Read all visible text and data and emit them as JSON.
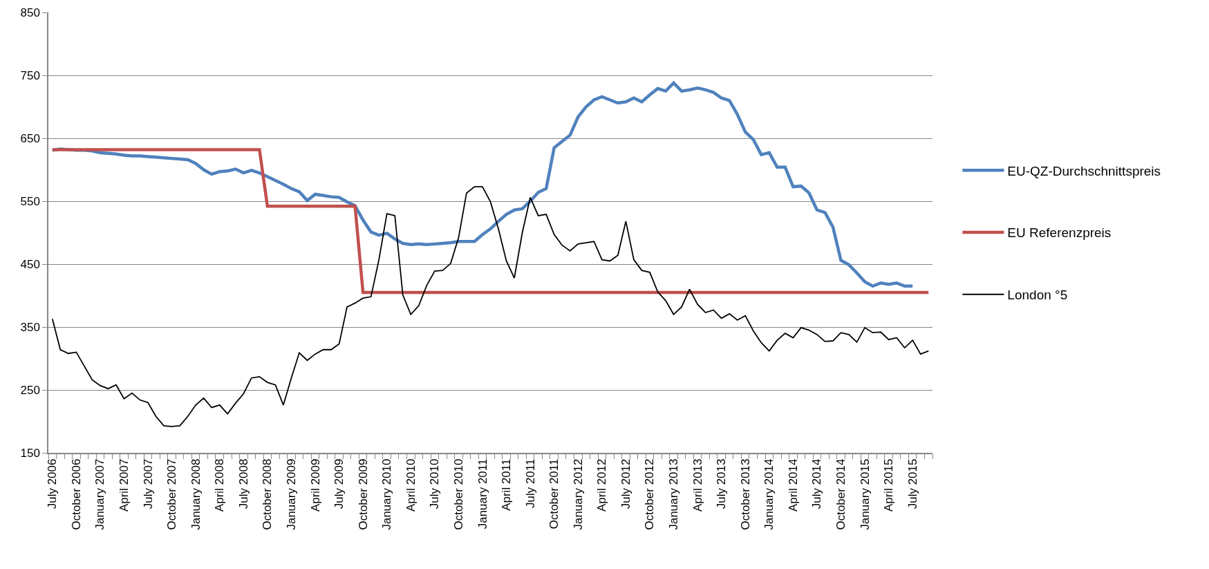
{
  "chart_data": {
    "type": "line",
    "categories": [
      "July 2006",
      null,
      null,
      "October 2006",
      null,
      null,
      "January 2007",
      null,
      null,
      "April 2007",
      null,
      null,
      "July 2007",
      null,
      null,
      "October 2007",
      null,
      null,
      "January 2008",
      null,
      null,
      "April 2008",
      null,
      null,
      "July 2008",
      null,
      null,
      "October 2008",
      null,
      null,
      "January 2009",
      null,
      null,
      "April 2009",
      null,
      null,
      "July 2009",
      null,
      null,
      "October 2009",
      null,
      null,
      "January 2010",
      null,
      null,
      "April 2010",
      null,
      null,
      "July 2010",
      null,
      null,
      "October 2010",
      null,
      null,
      "January 2011",
      null,
      null,
      "April 2011",
      null,
      null,
      "July 2011",
      null,
      null,
      "October 2011",
      null,
      null,
      "January 2012",
      null,
      null,
      "April 2012",
      null,
      null,
      "July 2012",
      null,
      null,
      "October 2012",
      null,
      null,
      "January 2013",
      null,
      null,
      "April 2013",
      null,
      null,
      "July 2013",
      null,
      null,
      "October 2013",
      null,
      null,
      "January 2014",
      null,
      null,
      "April 2014",
      null,
      null,
      "July 2014",
      null,
      null,
      "October 2014",
      null,
      null,
      "January 2015",
      null,
      null,
      "April 2015",
      null,
      null,
      "July 2015",
      null,
      null
    ],
    "series": [
      {
        "name": "EU-QZ-Durchschnittspreis",
        "color": "#4f81bd",
        "values": [
          631,
          633,
          632,
          631,
          631,
          630,
          627,
          626,
          625,
          623,
          622,
          622,
          621,
          620,
          619,
          618,
          617,
          616,
          610,
          600,
          593,
          597,
          598,
          601,
          595,
          599,
          595,
          589,
          583,
          577,
          570,
          565,
          551,
          561,
          559,
          557,
          556,
          549,
          543,
          520,
          501,
          496,
          499,
          490,
          483,
          481,
          482,
          481,
          482,
          483,
          484,
          486,
          486,
          486,
          497,
          506,
          518,
          529,
          536,
          538,
          550,
          564,
          570,
          635,
          645,
          655,
          684,
          700,
          711,
          716,
          711,
          706,
          708,
          714,
          708,
          719,
          729,
          725,
          738,
          725,
          727,
          730,
          727,
          723,
          714,
          710,
          688,
          660,
          648,
          624,
          627,
          604,
          604,
          573,
          574,
          563,
          536,
          532,
          509,
          456,
          449,
          436,
          422,
          415,
          420,
          418,
          420,
          415,
          415,
          null,
          null
        ]
      },
      {
        "name": "EU Referenzpreis",
        "color": "#c0504d",
        "values": [
          632,
          632,
          632,
          632,
          632,
          632,
          632,
          632,
          632,
          632,
          632,
          632,
          632,
          632,
          632,
          632,
          632,
          632,
          632,
          632,
          632,
          632,
          632,
          632,
          632,
          632,
          632,
          542,
          542,
          542,
          542,
          542,
          542,
          542,
          542,
          542,
          542,
          542,
          542,
          405,
          405,
          405,
          405,
          405,
          405,
          405,
          405,
          405,
          405,
          405,
          405,
          405,
          405,
          405,
          405,
          405,
          405,
          405,
          405,
          405,
          405,
          405,
          405,
          405,
          405,
          405,
          405,
          405,
          405,
          405,
          405,
          405,
          405,
          405,
          405,
          405,
          405,
          405,
          405,
          405,
          405,
          405,
          405,
          405,
          405,
          405,
          405,
          405,
          405,
          405,
          405,
          405,
          405,
          405,
          405,
          405,
          405,
          405,
          405,
          405,
          405,
          405,
          405,
          405,
          405,
          405,
          405,
          405,
          405,
          405,
          405
        ]
      },
      {
        "name": "London °5",
        "color": "#000000",
        "values": [
          363,
          314,
          308,
          310,
          288,
          266,
          257,
          252,
          258,
          236,
          245,
          234,
          230,
          208,
          193,
          192,
          193,
          208,
          226,
          237,
          222,
          226,
          212,
          229,
          244,
          269,
          271,
          262,
          258,
          226,
          269,
          309,
          297,
          307,
          314,
          314,
          323,
          382,
          388,
          396,
          398,
          457,
          530,
          527,
          401,
          370,
          384,
          416,
          439,
          440,
          451,
          492,
          563,
          573,
          573,
          549,
          506,
          455,
          428,
          500,
          556,
          527,
          529,
          497,
          480,
          471,
          482,
          484,
          486,
          457,
          455,
          464,
          518,
          457,
          440,
          437,
          406,
          392,
          370,
          382,
          410,
          386,
          373,
          377,
          364,
          371,
          361,
          368,
          344,
          325,
          312,
          329,
          340,
          333,
          349,
          345,
          338,
          327,
          328,
          341,
          338,
          326,
          349,
          341,
          342,
          330,
          333,
          317,
          329,
          307,
          312
        ]
      }
    ],
    "ylim": [
      150,
      850
    ],
    "yticks": [
      150,
      250,
      350,
      450,
      550,
      650,
      750,
      850
    ],
    "grid": "y",
    "legend": "right",
    "marker": "none",
    "line_style": "solid"
  }
}
